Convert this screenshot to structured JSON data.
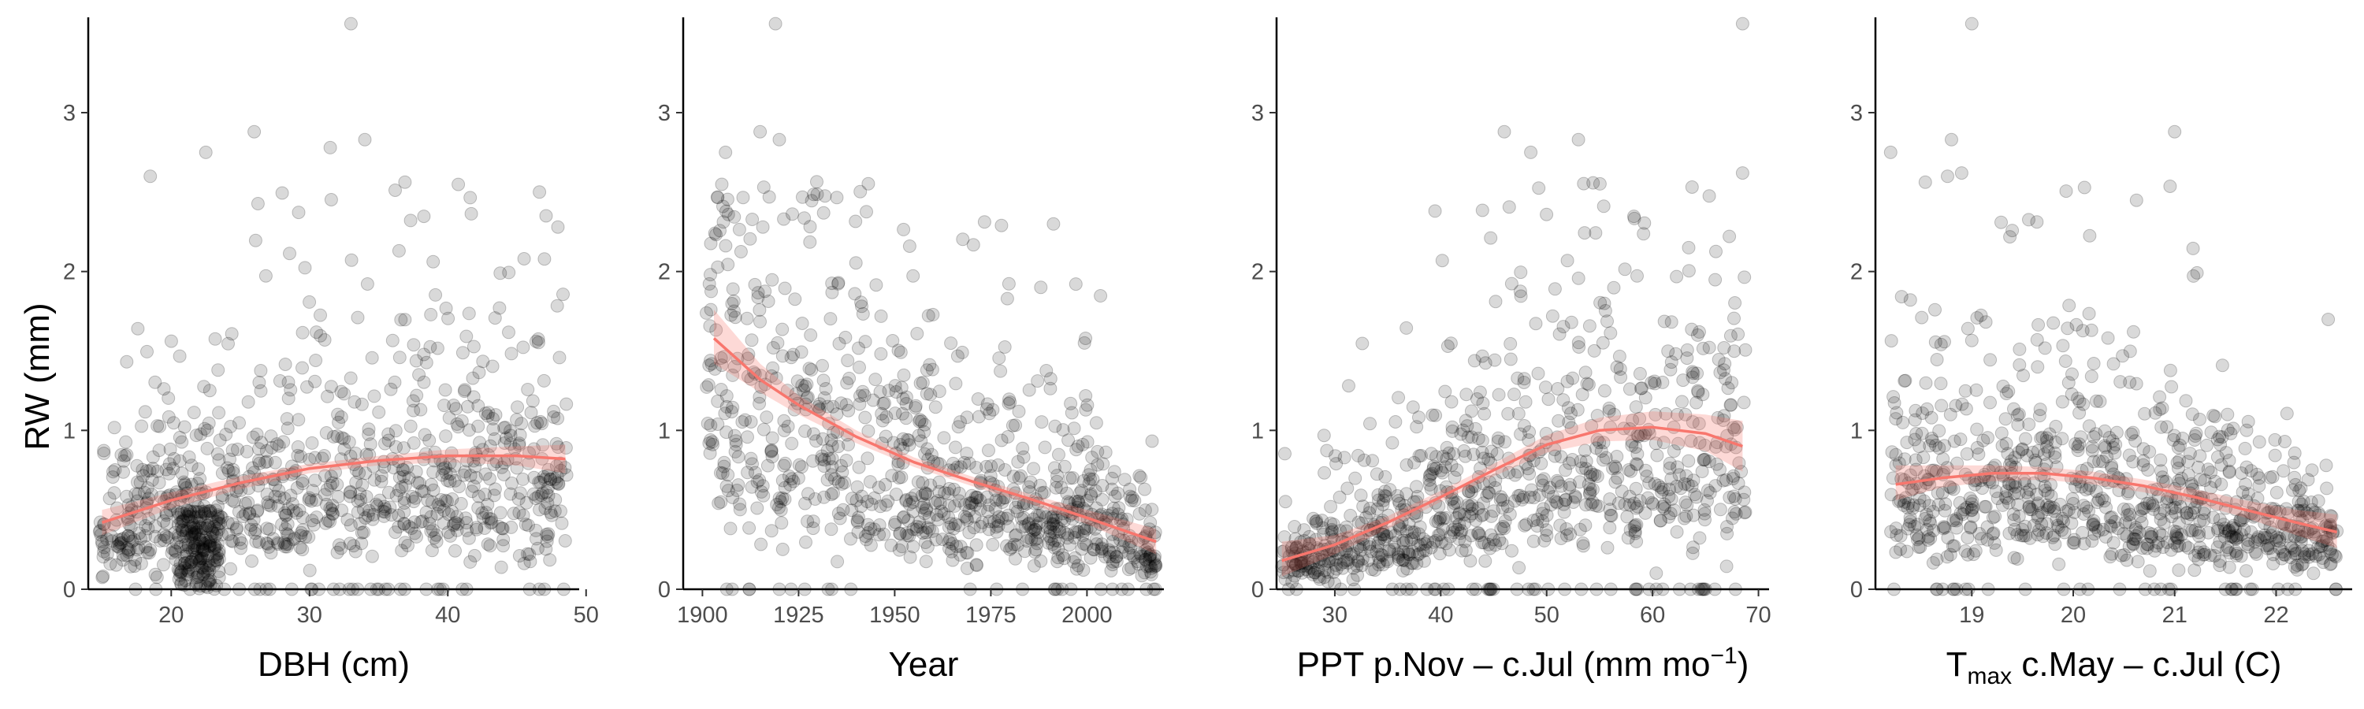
{
  "figure": {
    "y_axis_title": "RW (mm)"
  },
  "colors": {
    "points": "#000000",
    "smooth_line": "#f8766d",
    "ribbon": "#f8766d"
  },
  "chart_data": [
    {
      "type": "scatter",
      "xlabel": "DBH  (cm)",
      "ylabel": "RW (mm)",
      "xlim": [
        14.0,
        49.5
      ],
      "ylim": [
        0,
        3.6
      ],
      "xticks": [
        20,
        30,
        40,
        50
      ],
      "yticks": [
        0,
        1,
        2,
        3
      ],
      "grid": false,
      "legend": "none",
      "scatter_x_range": [
        14.8,
        48.6
      ],
      "points_note_visible": false,
      "cluster_x": [
        20.5,
        23.5
      ],
      "cluster_y": [
        0.0,
        0.5
      ],
      "outliers": [
        {
          "x": 33.0,
          "y": 3.56
        },
        {
          "x": 26.0,
          "y": 2.88
        },
        {
          "x": 31.5,
          "y": 2.78
        },
        {
          "x": 34.0,
          "y": 2.83
        },
        {
          "x": 22.5,
          "y": 2.75
        }
      ],
      "trend": {
        "x": [
          15,
          20,
          25,
          30,
          35,
          40,
          45,
          48.5
        ],
        "y": [
          0.42,
          0.56,
          0.67,
          0.76,
          0.81,
          0.84,
          0.84,
          0.82
        ]
      },
      "band": {
        "x": [
          15,
          20,
          25,
          30,
          35,
          40,
          45,
          48.5
        ],
        "lower": [
          0.34,
          0.51,
          0.63,
          0.73,
          0.78,
          0.8,
          0.78,
          0.73
        ],
        "upper": [
          0.5,
          0.61,
          0.71,
          0.79,
          0.84,
          0.88,
          0.9,
          0.91
        ]
      }
    },
    {
      "type": "scatter",
      "xlabel": "Year",
      "ylabel": "",
      "xlim": [
        1895,
        2020
      ],
      "ylim": [
        0,
        3.6
      ],
      "xticks": [
        1900,
        1925,
        1950,
        1975,
        2000
      ],
      "yticks": [
        0,
        1,
        2,
        3
      ],
      "grid": false,
      "legend": "none",
      "scatter_x_range": [
        1901,
        2018
      ],
      "outliers": [
        {
          "x": 1919,
          "y": 3.56
        },
        {
          "x": 1915,
          "y": 2.88
        },
        {
          "x": 1920,
          "y": 2.83
        },
        {
          "x": 1906,
          "y": 2.75
        },
        {
          "x": 1988,
          "y": 1.9
        }
      ],
      "trend": {
        "x": [
          1903,
          1915,
          1925,
          1940,
          1955,
          1970,
          1985,
          2000,
          2018
        ],
        "y": [
          1.58,
          1.32,
          1.16,
          0.96,
          0.8,
          0.68,
          0.57,
          0.45,
          0.3
        ]
      },
      "band": {
        "x": [
          1903,
          1915,
          1925,
          1940,
          1955,
          1970,
          1985,
          2000,
          2018
        ],
        "lower": [
          1.42,
          1.24,
          1.1,
          0.92,
          0.77,
          0.65,
          0.54,
          0.41,
          0.22
        ],
        "upper": [
          1.76,
          1.42,
          1.22,
          1.0,
          0.83,
          0.71,
          0.6,
          0.5,
          0.38
        ]
      }
    },
    {
      "type": "scatter",
      "xlabel": "PPT p.Nov – c.Jul (mm mo",
      "xlabel_superscript": "−1",
      "xlabel_suffix": ")",
      "ylabel": "",
      "xlim": [
        24.5,
        71.0
      ],
      "ylim": [
        0,
        3.6
      ],
      "xticks": [
        30,
        40,
        50,
        60,
        70
      ],
      "yticks": [
        0,
        1,
        2,
        3
      ],
      "grid": false,
      "legend": "none",
      "scatter_x_range": [
        25.0,
        68.8
      ],
      "outliers": [
        {
          "x": 68.5,
          "y": 3.56
        },
        {
          "x": 46.0,
          "y": 2.88
        },
        {
          "x": 53.0,
          "y": 2.83
        },
        {
          "x": 48.5,
          "y": 2.75
        },
        {
          "x": 68.5,
          "y": 2.62
        }
      ],
      "trend": {
        "x": [
          25,
          30,
          35,
          40,
          45,
          50,
          55,
          60,
          65,
          68.5
        ],
        "y": [
          0.18,
          0.28,
          0.42,
          0.58,
          0.75,
          0.91,
          1.0,
          1.02,
          0.98,
          0.9
        ]
      },
      "band": {
        "x": [
          25,
          30,
          35,
          40,
          45,
          50,
          55,
          60,
          65,
          68.5
        ],
        "lower": [
          0.08,
          0.22,
          0.38,
          0.55,
          0.71,
          0.86,
          0.93,
          0.94,
          0.87,
          0.74
        ],
        "upper": [
          0.3,
          0.34,
          0.46,
          0.62,
          0.79,
          0.97,
          1.08,
          1.12,
          1.1,
          1.06
        ]
      }
    },
    {
      "type": "scatter",
      "xlabel": "T",
      "xlabel_subscript": "max",
      "xlabel_suffix": " c.May – c.Jul (C)",
      "ylabel": "",
      "xlim": [
        18.05,
        22.75
      ],
      "ylim": [
        0,
        3.6
      ],
      "xticks": [
        19,
        20,
        21,
        22
      ],
      "yticks": [
        0,
        1,
        2,
        3
      ],
      "grid": false,
      "legend": "none",
      "scatter_x_range": [
        18.2,
        22.6
      ],
      "outliers": [
        {
          "x": 19.0,
          "y": 3.56
        },
        {
          "x": 21.0,
          "y": 2.88
        },
        {
          "x": 18.8,
          "y": 2.83
        },
        {
          "x": 18.2,
          "y": 2.75
        },
        {
          "x": 18.9,
          "y": 2.62
        }
      ],
      "trend": {
        "x": [
          18.25,
          18.7,
          19.2,
          19.7,
          20.2,
          20.7,
          21.2,
          21.7,
          22.2,
          22.6
        ],
        "y": [
          0.66,
          0.7,
          0.73,
          0.73,
          0.7,
          0.65,
          0.58,
          0.5,
          0.42,
          0.36
        ]
      },
      "band": {
        "x": [
          18.25,
          18.7,
          19.2,
          19.7,
          20.2,
          20.7,
          21.2,
          21.7,
          22.2,
          22.6
        ],
        "lower": [
          0.56,
          0.64,
          0.68,
          0.69,
          0.66,
          0.61,
          0.54,
          0.45,
          0.34,
          0.26
        ],
        "upper": [
          0.78,
          0.78,
          0.78,
          0.77,
          0.74,
          0.69,
          0.63,
          0.56,
          0.5,
          0.47
        ]
      }
    }
  ]
}
